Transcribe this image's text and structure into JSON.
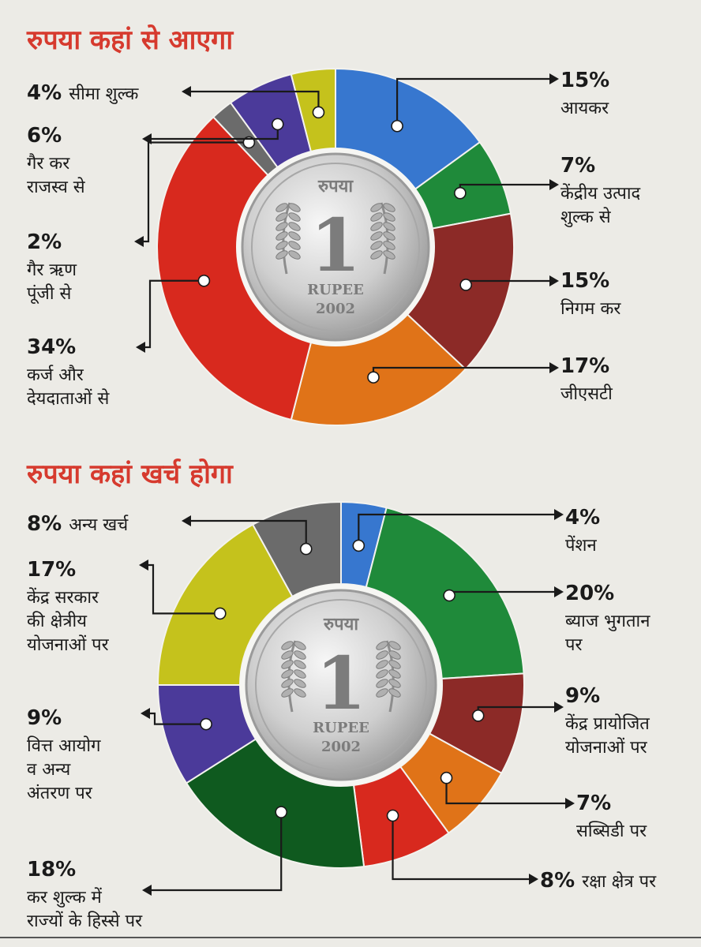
{
  "chart_data": [
    {
      "type": "pie",
      "title": "रुपया कहां से आएगा",
      "coin": {
        "top": "रुपया",
        "value": "1",
        "word": "RUPEE",
        "year": "2002"
      },
      "slices": [
        {
          "pct": "15%",
          "value": 15,
          "label": [
            "आयकर"
          ],
          "color": "#3777cf"
        },
        {
          "pct": "7%",
          "value": 7,
          "label": [
            "केंद्रीय उत्पाद",
            "शुल्क से"
          ],
          "color": "#1f8a3a"
        },
        {
          "pct": "15%",
          "value": 15,
          "label": [
            "निगम कर"
          ],
          "color": "#8c2a27"
        },
        {
          "pct": "17%",
          "value": 17,
          "label": [
            "जीएसटी"
          ],
          "color": "#e07318"
        },
        {
          "pct": "34%",
          "value": 34,
          "label": [
            "कर्ज और",
            "देयदाताओं से"
          ],
          "color": "#d8291e"
        },
        {
          "pct": "2%",
          "value": 2,
          "label": [
            "गैर ऋण",
            "पूंजी से"
          ],
          "color": "#6b6b6b"
        },
        {
          "pct": "6%",
          "value": 6,
          "label": [
            "गैर कर",
            "राजस्व से"
          ],
          "color": "#4b3a9a"
        },
        {
          "pct": "4%",
          "value": 4,
          "label": [
            "सीमा शुल्क"
          ],
          "color": "#c5c21c"
        }
      ]
    },
    {
      "type": "pie",
      "title": "रुपया कहां खर्च होगा",
      "coin": {
        "top": "रुपया",
        "value": "1",
        "word": "RUPEE",
        "year": "2002"
      },
      "slices": [
        {
          "pct": "4%",
          "value": 4,
          "label": [
            "पेंशन"
          ],
          "color": "#3777cf"
        },
        {
          "pct": "20%",
          "value": 20,
          "label": [
            "ब्याज भुगतान",
            "पर"
          ],
          "color": "#1f8a3a"
        },
        {
          "pct": "9%",
          "value": 9,
          "label": [
            "केंद्र प्रायोजित",
            "योजनाओं पर"
          ],
          "color": "#8c2a27"
        },
        {
          "pct": "7%",
          "value": 7,
          "label": [
            "सब्सिडी पर"
          ],
          "color": "#e07318"
        },
        {
          "pct": "8%",
          "value": 8,
          "label": [
            "रक्षा क्षेत्र पर"
          ],
          "color": "#d8291e"
        },
        {
          "pct": "18%",
          "value": 18,
          "label": [
            "कर शुल्क में",
            "राज्यों के हिस्से पर"
          ],
          "color": "#0f5a1f"
        },
        {
          "pct": "9%",
          "value": 9,
          "label": [
            "वित्त आयोग",
            "व अन्य",
            "अंतरण पर"
          ],
          "color": "#4b3a9a"
        },
        {
          "pct": "17%",
          "value": 17,
          "label": [
            "केंद्र सरकार",
            "की क्षेत्रीय",
            "योजनाओं पर"
          ],
          "color": "#c5c21c"
        },
        {
          "pct": "8%",
          "value": 8,
          "label": [
            "अन्य खर्च"
          ],
          "color": "#6b6b6b"
        }
      ]
    }
  ]
}
